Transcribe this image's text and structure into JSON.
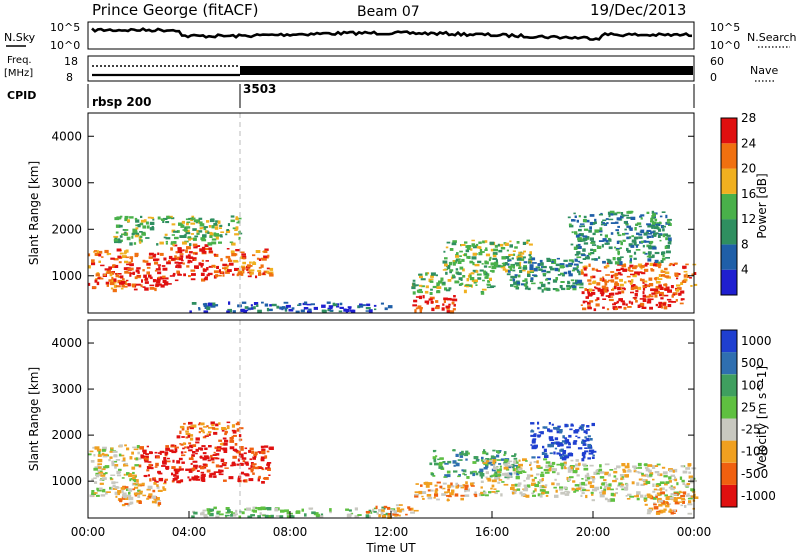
{
  "header": {
    "station": "Prince George (fitACF)",
    "beam": "Beam 07",
    "date": "19/Dec/2013"
  },
  "top_panels": {
    "nsky_label": "N.Sky",
    "nsearch_label": "N.Search",
    "nsky_ticks": [
      "10^5",
      "10^0"
    ],
    "nsearch_ticks": [
      "10^5",
      "10^0"
    ],
    "freq_label_1": "Freq.",
    "freq_label_2": "[MHz]",
    "freq_ticks": [
      "18",
      "8"
    ],
    "nave_label": "Nave",
    "nave_ticks": [
      "60",
      "0"
    ],
    "cpid_label": "CPID",
    "cpid_segments": [
      {
        "name": "rbsp 200",
        "start_hour": 0
      },
      {
        "name": "3503",
        "start_hour": 6
      }
    ]
  },
  "chart_data": [
    {
      "type": "heatmap",
      "title": "",
      "xlabel": "",
      "ylabel": "Slant Range [km]",
      "x_range_hours": [
        0,
        24
      ],
      "ylim": [
        200,
        4500
      ],
      "y_ticks": [
        "1000",
        "2000",
        "3000",
        "4000"
      ],
      "colorbar": {
        "label": "Power [dB]",
        "ticks": [
          "4",
          "8",
          "12",
          "16",
          "20",
          "24",
          "28"
        ],
        "colors": [
          "#1f1fd0",
          "#1f5fa8",
          "#2f8f60",
          "#49b04a",
          "#f0b020",
          "#f07010",
          "#e01010"
        ]
      },
      "echo_regions": [
        {
          "t0": 0.0,
          "t1": 1.5,
          "r0": 700,
          "r1": 1600,
          "level": 5
        },
        {
          "t0": 1.5,
          "t1": 3.2,
          "r0": 700,
          "r1": 1500,
          "level": 6
        },
        {
          "t0": 3.2,
          "t1": 4.8,
          "r0": 900,
          "r1": 1700,
          "level": 6
        },
        {
          "t0": 4.8,
          "t1": 7.2,
          "r0": 1000,
          "r1": 1600,
          "level": 5
        },
        {
          "t0": 1.0,
          "t1": 6.0,
          "r0": 1700,
          "r1": 2300,
          "level": 3
        },
        {
          "t0": 4.0,
          "t1": 12.0,
          "r0": 250,
          "r1": 450,
          "level": 1
        },
        {
          "t0": 12.8,
          "t1": 14.5,
          "r0": 250,
          "r1": 600,
          "level": 6
        },
        {
          "t0": 12.8,
          "t1": 16.0,
          "r0": 650,
          "r1": 1100,
          "level": 3
        },
        {
          "t0": 14.0,
          "t1": 17.5,
          "r0": 1100,
          "r1": 1800,
          "level": 3
        },
        {
          "t0": 16.5,
          "t1": 19.5,
          "r0": 700,
          "r1": 1400,
          "level": 2
        },
        {
          "t0": 19.5,
          "t1": 23.5,
          "r0": 300,
          "r1": 800,
          "level": 6
        },
        {
          "t0": 19.5,
          "t1": 24.0,
          "r0": 700,
          "r1": 1300,
          "level": 5
        },
        {
          "t0": 19.0,
          "t1": 23.0,
          "r0": 1300,
          "r1": 2400,
          "level": 2
        }
      ]
    },
    {
      "type": "heatmap",
      "title": "",
      "xlabel": "Time UT",
      "ylabel": "Slant Range [km]",
      "x_range_hours": [
        0,
        24
      ],
      "ylim": [
        200,
        4500
      ],
      "y_ticks": [
        "1000",
        "2000",
        "3000",
        "4000"
      ],
      "x_ticks": [
        "00:00",
        "04:00",
        "08:00",
        "12:00",
        "16:00",
        "20:00",
        "00:00"
      ],
      "colorbar": {
        "label": "Velocity [m s^-1]",
        "ticks": [
          "1000",
          "500",
          "100",
          "25",
          "-25",
          "-100",
          "-500",
          "-1000"
        ],
        "colors": [
          "#1f3fd0",
          "#2f6fb0",
          "#3f9f5f",
          "#5fc040",
          "#c8c8c0",
          "#f0a020",
          "#f06010",
          "#e01010"
        ]
      },
      "echo_regions": [
        {
          "t0": 0.0,
          "t1": 2.0,
          "r0": 700,
          "r1": 1800,
          "level": 4
        },
        {
          "t0": 1.0,
          "t1": 3.0,
          "r0": 500,
          "r1": 1000,
          "level": 5
        },
        {
          "t0": 2.0,
          "t1": 7.2,
          "r0": 1000,
          "r1": 1800,
          "level": 7
        },
        {
          "t0": 3.5,
          "t1": 6.0,
          "r0": 1800,
          "r1": 2300,
          "level": 6
        },
        {
          "t0": 4.0,
          "t1": 12.0,
          "r0": 250,
          "r1": 450,
          "level": 3
        },
        {
          "t0": 11.0,
          "t1": 13.0,
          "r0": 250,
          "r1": 500,
          "level": 5
        },
        {
          "t0": 12.8,
          "t1": 15.5,
          "r0": 600,
          "r1": 1000,
          "level": 5
        },
        {
          "t0": 13.5,
          "t1": 17.0,
          "r0": 1100,
          "r1": 1700,
          "level": 2
        },
        {
          "t0": 15.5,
          "t1": 19.5,
          "r0": 700,
          "r1": 1500,
          "level": 4
        },
        {
          "t0": 17.5,
          "t1": 20.0,
          "r0": 1500,
          "r1": 2300,
          "level": 0
        },
        {
          "t0": 19.5,
          "t1": 24.0,
          "r0": 600,
          "r1": 1400,
          "level": 4
        },
        {
          "t0": 22.0,
          "t1": 24.0,
          "r0": 300,
          "r1": 800,
          "level": 5
        }
      ]
    }
  ]
}
